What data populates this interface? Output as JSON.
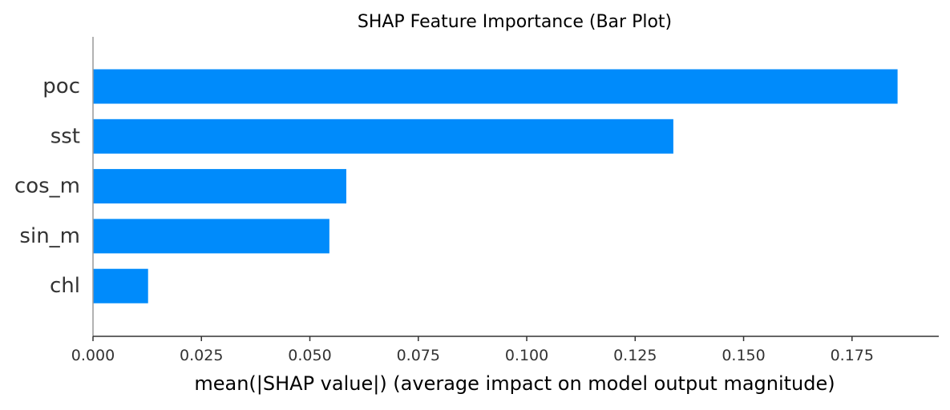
{
  "chart_data": {
    "type": "bar",
    "orientation": "horizontal",
    "title": "SHAP Feature Importance (Bar Plot)",
    "xlabel": "mean(|SHAP value|) (average impact on model output magnitude)",
    "ylabel": "",
    "categories": [
      "poc",
      "sst",
      "cos_m",
      "sin_m",
      "chl"
    ],
    "values": [
      0.1855,
      0.1338,
      0.0584,
      0.0545,
      0.0127
    ],
    "xlim": [
      0,
      0.195
    ],
    "xticks": [
      0.0,
      0.025,
      0.05,
      0.075,
      0.1,
      0.125,
      0.15,
      0.175
    ],
    "xtick_labels": [
      "0.000",
      "0.025",
      "0.050",
      "0.075",
      "0.100",
      "0.125",
      "0.150",
      "0.175"
    ],
    "grid": false,
    "bar_color": "#008bfb",
    "text_color": "#333333",
    "axis_color": "#333333"
  }
}
